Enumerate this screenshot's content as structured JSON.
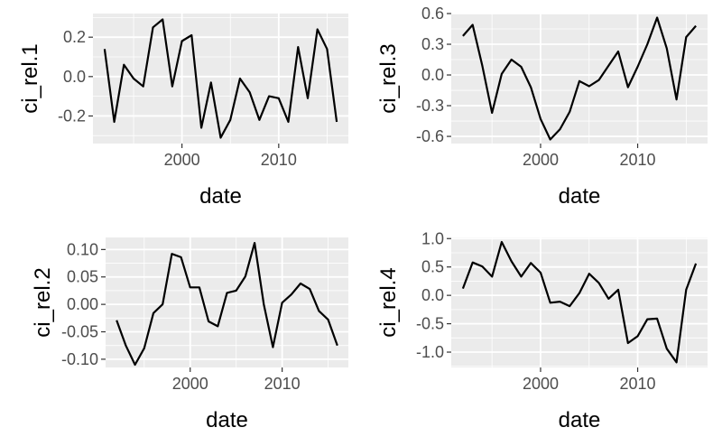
{
  "chart_data": [
    {
      "type": "line",
      "xlabel": "date",
      "ylabel": "ci_rel.1",
      "xlim": [
        1990.8,
        2017.2
      ],
      "ylim": [
        -0.34,
        0.32
      ],
      "xticks": [
        2000,
        2010
      ],
      "xtick_labels": [
        "2000",
        "2010"
      ],
      "yticks": [
        0.2,
        0.0,
        -0.2
      ],
      "ytick_labels": [
        "0.2",
        "0.0",
        "-0.2"
      ],
      "grid": true,
      "x": [
        1992,
        1993,
        1994,
        1995,
        1996,
        1997,
        1998,
        1999,
        2000,
        2001,
        2002,
        2003,
        2004,
        2005,
        2006,
        2007,
        2008,
        2009,
        2010,
        2011,
        2012,
        2013,
        2014,
        2015,
        2016
      ],
      "y": [
        0.14,
        -0.23,
        0.06,
        -0.01,
        -0.05,
        0.25,
        0.29,
        -0.05,
        0.18,
        0.21,
        -0.26,
        -0.03,
        -0.31,
        -0.22,
        -0.01,
        -0.08,
        -0.22,
        -0.1,
        -0.11,
        -0.23,
        0.15,
        -0.11,
        0.24,
        0.14,
        -0.23
      ]
    },
    {
      "type": "line",
      "xlabel": "date",
      "ylabel": "ci_rel.3",
      "xlim": [
        1990.8,
        2017.2
      ],
      "ylim": [
        -0.67,
        0.6
      ],
      "xticks": [
        2000,
        2010
      ],
      "xtick_labels": [
        "2000",
        "2010"
      ],
      "yticks": [
        0.6,
        0.3,
        0.0,
        -0.3,
        -0.6
      ],
      "ytick_labels": [
        "0.6",
        "0.3",
        "0.0",
        "-0.3",
        "-0.6"
      ],
      "grid": true,
      "x": [
        1992,
        1993,
        1994,
        1995,
        1996,
        1997,
        1998,
        1999,
        2000,
        2001,
        2002,
        2003,
        2004,
        2005,
        2006,
        2007,
        2008,
        2009,
        2010,
        2011,
        2012,
        2013,
        2014,
        2015,
        2016
      ],
      "y": [
        0.38,
        0.49,
        0.09,
        -0.37,
        0.01,
        0.15,
        0.08,
        -0.12,
        -0.43,
        -0.63,
        -0.53,
        -0.36,
        -0.06,
        -0.11,
        -0.05,
        0.09,
        0.23,
        -0.12,
        0.08,
        0.3,
        0.56,
        0.26,
        -0.24,
        0.37,
        0.48
      ]
    },
    {
      "type": "line",
      "xlabel": "date",
      "ylabel": "ci_rel.2",
      "xlim": [
        1990.8,
        2017.2
      ],
      "ylim": [
        -0.115,
        0.122
      ],
      "xticks": [
        2000,
        2010
      ],
      "xtick_labels": [
        "2000",
        "2010"
      ],
      "yticks": [
        0.1,
        0.05,
        0.0,
        -0.05,
        -0.1
      ],
      "ytick_labels": [
        "0.10",
        "0.05",
        "0.00",
        "-0.05",
        "-0.10"
      ],
      "grid": true,
      "x": [
        1992,
        1993,
        1994,
        1995,
        1996,
        1997,
        1998,
        1999,
        2000,
        2001,
        2002,
        2003,
        2004,
        2005,
        2006,
        2007,
        2008,
        2009,
        2010,
        2011,
        2012,
        2013,
        2014,
        2015,
        2016
      ],
      "y": [
        -0.029,
        -0.075,
        -0.11,
        -0.08,
        -0.016,
        0.0,
        0.092,
        0.086,
        0.031,
        0.031,
        -0.031,
        -0.04,
        0.021,
        0.025,
        0.051,
        0.112,
        0.0,
        -0.078,
        0.003,
        0.018,
        0.038,
        0.028,
        -0.012,
        -0.028,
        -0.075
      ]
    },
    {
      "type": "line",
      "xlabel": "date",
      "ylabel": "ci_rel.4",
      "xlim": [
        1990.8,
        2017.2
      ],
      "ylim": [
        -1.27,
        1.02
      ],
      "xticks": [
        2000,
        2010
      ],
      "xtick_labels": [
        "2000",
        "2010"
      ],
      "yticks": [
        1.0,
        0.5,
        0.0,
        -0.5,
        -1.0
      ],
      "ytick_labels": [
        "1.0",
        "0.5",
        "0.0",
        "-0.5",
        "-1.0"
      ],
      "grid": true,
      "x": [
        1992,
        1993,
        1994,
        1995,
        1996,
        1997,
        1998,
        1999,
        2000,
        2001,
        2002,
        2003,
        2004,
        2005,
        2006,
        2007,
        2008,
        2009,
        2010,
        2011,
        2012,
        2013,
        2014,
        2015,
        2016
      ],
      "y": [
        0.12,
        0.58,
        0.51,
        0.33,
        0.94,
        0.6,
        0.33,
        0.57,
        0.4,
        -0.13,
        -0.11,
        -0.19,
        0.04,
        0.38,
        0.22,
        -0.06,
        0.1,
        -0.84,
        -0.72,
        -0.42,
        -0.41,
        -0.94,
        -1.18,
        0.1,
        0.56
      ]
    }
  ]
}
